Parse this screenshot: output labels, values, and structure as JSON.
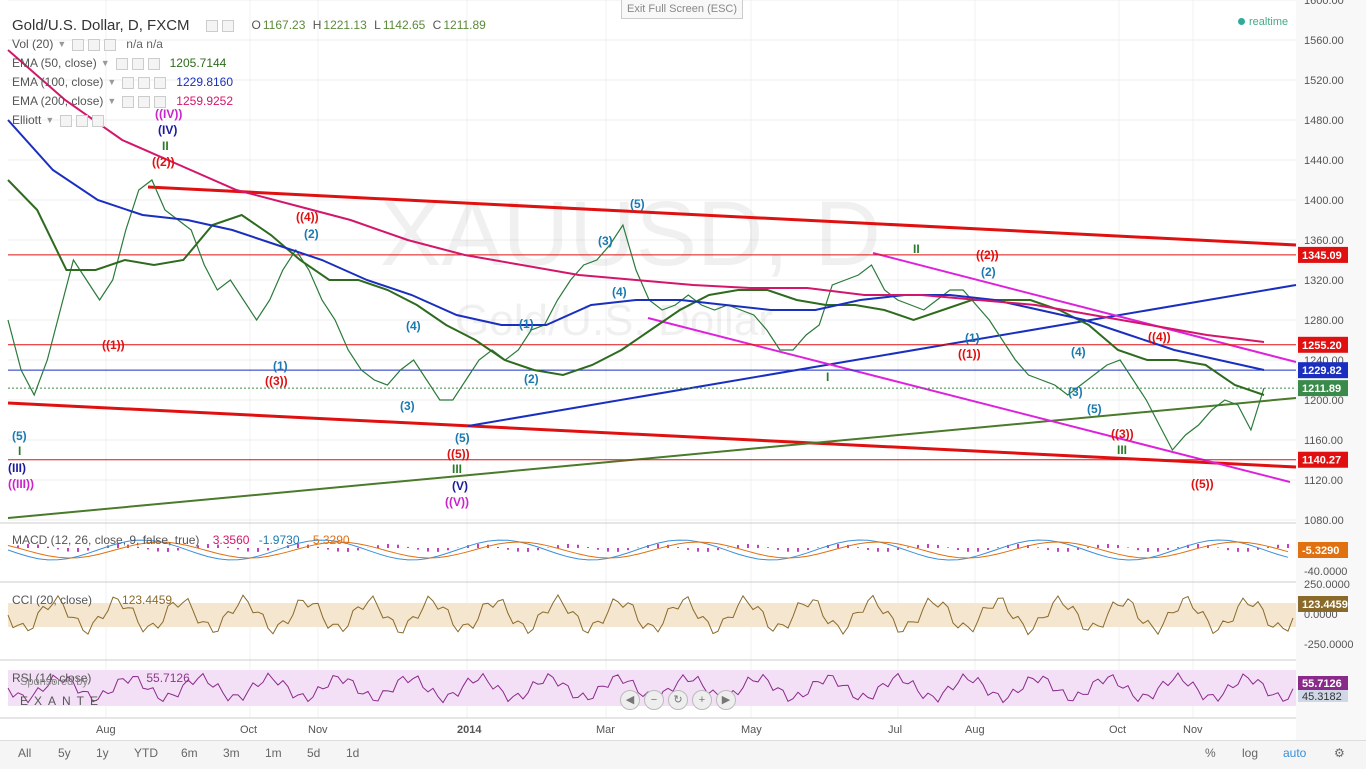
{
  "header": {
    "title": "Gold/U.S. Dollar, D, FXCM",
    "ohlc": {
      "o_label": "O",
      "o": "1167.23",
      "h_label": "H",
      "h": "1221.13",
      "l_label": "L",
      "l": "1142.65",
      "c_label": "C",
      "c": "1211.89"
    },
    "exit_fullscreen": "Exit Full Screen (ESC)",
    "realtime": "realtime"
  },
  "indicators": [
    {
      "label": "Vol (20)",
      "value": "n/a   n/a",
      "color": "#666666"
    },
    {
      "label": "EMA (50, close)",
      "value": "1205.7144",
      "color": "#2e6b1f"
    },
    {
      "label": "EMA (100, close)",
      "value": "1229.8160",
      "color": "#1a2fbf"
    },
    {
      "label": "EMA (200, close)",
      "value": "1259.9252",
      "color": "#d4166a"
    },
    {
      "label": "Elliott",
      "value": "",
      "color": "#666666"
    }
  ],
  "watermark": {
    "symbol": "XAUUSD, D",
    "desc": "Gold/U.S. Dollar"
  },
  "chart_data": {
    "type": "line",
    "title": "Gold/U.S. Dollar, D, FXCM",
    "ylim": [
      1080,
      1600
    ],
    "yticks": [
      "1600.00",
      "1560.00",
      "1520.00",
      "1480.00",
      "1440.00",
      "1400.00",
      "1360.00",
      "1320.00",
      "1280.00",
      "1240.00",
      "1200.00",
      "1160.00",
      "1120.00",
      "1080.00"
    ],
    "xticks": [
      "Aug",
      "Oct",
      "Nov",
      "2014",
      "Mar",
      "May",
      "Jul",
      "Aug",
      "Oct",
      "Nov"
    ],
    "series": [
      {
        "name": "price",
        "color": "#2a7a3a",
        "values": [
          1280,
          1230,
          1205,
          1240,
          1290,
          1340,
          1320,
          1300,
          1320,
          1370,
          1410,
          1420,
          1390,
          1380,
          1370,
          1335,
          1310,
          1320,
          1300,
          1280,
          1300,
          1330,
          1350,
          1330,
          1300,
          1280,
          1250,
          1230,
          1220,
          1215,
          1230,
          1240,
          1220,
          1200,
          1200,
          1220,
          1240,
          1250,
          1240,
          1250,
          1270,
          1275,
          1300,
          1320,
          1335,
          1340,
          1355,
          1375,
          1330,
          1300,
          1290,
          1295,
          1305,
          1295,
          1290,
          1295,
          1290,
          1285,
          1270,
          1250,
          1250,
          1265,
          1275,
          1315,
          1320,
          1325,
          1335,
          1310,
          1300,
          1295,
          1290,
          1300,
          1310,
          1310,
          1295,
          1280,
          1260,
          1240,
          1225,
          1220,
          1215,
          1205,
          1215,
          1225,
          1235,
          1240,
          1220,
          1200,
          1175,
          1150,
          1165,
          1175,
          1190,
          1200,
          1195,
          1170,
          1212
        ]
      },
      {
        "name": "EMA (50, close)",
        "color": "#2e6b1f",
        "values": [
          1420,
          1390,
          1330,
          1330,
          1340,
          1335,
          1340,
          1375,
          1385,
          1365,
          1340,
          1320,
          1320,
          1310,
          1295,
          1275,
          1260,
          1240,
          1230,
          1225,
          1235,
          1250,
          1270,
          1290,
          1305,
          1310,
          1310,
          1300,
          1295,
          1295,
          1290,
          1280,
          1290,
          1300,
          1300,
          1300,
          1290,
          1275,
          1250,
          1240,
          1240,
          1235,
          1215,
          1205
        ]
      },
      {
        "name": "EMA (100, close)",
        "color": "#1a2fbf",
        "values": [
          1480,
          1430,
          1400,
          1385,
          1380,
          1370,
          1355,
          1340,
          1320,
          1305,
          1285,
          1275,
          1275,
          1295,
          1300,
          1300,
          1295,
          1290,
          1290,
          1300,
          1305,
          1305,
          1300,
          1290,
          1280,
          1265,
          1250,
          1240,
          1230
        ]
      },
      {
        "name": "EMA (200, close)",
        "color": "#d4166a",
        "values": [
          1550,
          1500,
          1460,
          1435,
          1410,
          1395,
          1380,
          1360,
          1345,
          1335,
          1325,
          1320,
          1315,
          1312,
          1312,
          1305,
          1305,
          1300,
          1295,
          1285,
          1275,
          1265,
          1258
        ]
      }
    ],
    "levels": [
      {
        "label": "1345.09",
        "value": 1345.09,
        "color": "#e01010"
      },
      {
        "label": "1255.20",
        "value": 1255.2,
        "color": "#e01010"
      },
      {
        "label": "1229.82",
        "value": 1229.82,
        "color": "#1a2fbf"
      },
      {
        "label": "1211.89",
        "value": 1211.89,
        "color": "#3a8a4a"
      },
      {
        "label": "1140.27",
        "value": 1140.27,
        "color": "#e01010"
      }
    ],
    "wave_labels": [
      {
        "t": "((IV))",
        "c": "#cc22cc"
      },
      {
        "t": "(IV)",
        "c": "#1a1aa0"
      },
      {
        "t": "II",
        "c": "#2a7a2a"
      },
      {
        "t": "((2))",
        "c": "#e01010"
      },
      {
        "t": "((4))",
        "c": "#e01010"
      },
      {
        "t": "(2)",
        "c": "#1a7ab0"
      },
      {
        "t": "((1))",
        "c": "#e01010"
      },
      {
        "t": "(1)",
        "c": "#1a7ab0"
      },
      {
        "t": "((3))",
        "c": "#e01010"
      },
      {
        "t": "(4)",
        "c": "#1a7ab0"
      },
      {
        "t": "(3)",
        "c": "#1a7ab0"
      },
      {
        "t": "(5)",
        "c": "#1a7ab0"
      },
      {
        "t": "I",
        "c": "#2a7a2a"
      },
      {
        "t": "(III)",
        "c": "#1a1aa0"
      },
      {
        "t": "((III))",
        "c": "#cc22cc"
      },
      {
        "t": "(1)",
        "c": "#1a7ab0"
      },
      {
        "t": "(2)",
        "c": "#1a7ab0"
      },
      {
        "t": "(5)",
        "c": "#1a7ab0"
      },
      {
        "t": "((5))",
        "c": "#e01010"
      },
      {
        "t": "III",
        "c": "#2a7a2a"
      },
      {
        "t": "(V)",
        "c": "#1a1aa0"
      },
      {
        "t": "((V))",
        "c": "#cc22cc"
      },
      {
        "t": "(3)",
        "c": "#1a7ab0"
      },
      {
        "t": "(5)",
        "c": "#1a7ab0"
      },
      {
        "t": "(4)",
        "c": "#1a7ab0"
      },
      {
        "t": "I",
        "c": "#2a7a2a"
      },
      {
        "t": "II",
        "c": "#2a7a2a"
      },
      {
        "t": "((2))",
        "c": "#e01010"
      },
      {
        "t": "(2)",
        "c": "#1a7ab0"
      },
      {
        "t": "(1)",
        "c": "#1a7ab0"
      },
      {
        "t": "((1))",
        "c": "#e01010"
      },
      {
        "t": "(4)",
        "c": "#1a7ab0"
      },
      {
        "t": "(3)",
        "c": "#1a7ab0"
      },
      {
        "t": "(5)",
        "c": "#1a7ab0"
      },
      {
        "t": "((4))",
        "c": "#e01010"
      },
      {
        "t": "((3))",
        "c": "#e01010"
      },
      {
        "t": "III",
        "c": "#2a7a2a"
      },
      {
        "t": "((5))",
        "c": "#e01010"
      }
    ],
    "grid": true
  },
  "macd": {
    "label": "MACD (12, 26, close, 9, false, true)",
    "v1": "3.3560",
    "v2": "-1.9730",
    "v3": "-5.3290",
    "badge": "-5.3290",
    "ticks": [
      "-40.0000"
    ]
  },
  "cci": {
    "label": "CCI (20, close)",
    "value": "123.4459",
    "badge": "123.4459",
    "ticks": [
      "250.0000",
      "0.0000",
      "-250.0000"
    ]
  },
  "rsi": {
    "label": "RSI (14, close)",
    "value": "55.7126",
    "badge1": "55.7126",
    "badge2": "45.3182"
  },
  "sponsor": {
    "line1": "Sponsored by",
    "line2": "EXANTE"
  },
  "bottom": {
    "ranges": [
      "All",
      "5y",
      "1y",
      "YTD",
      "6m",
      "3m",
      "1m",
      "5d",
      "1d"
    ],
    "right": [
      "%",
      "log",
      "auto"
    ]
  }
}
